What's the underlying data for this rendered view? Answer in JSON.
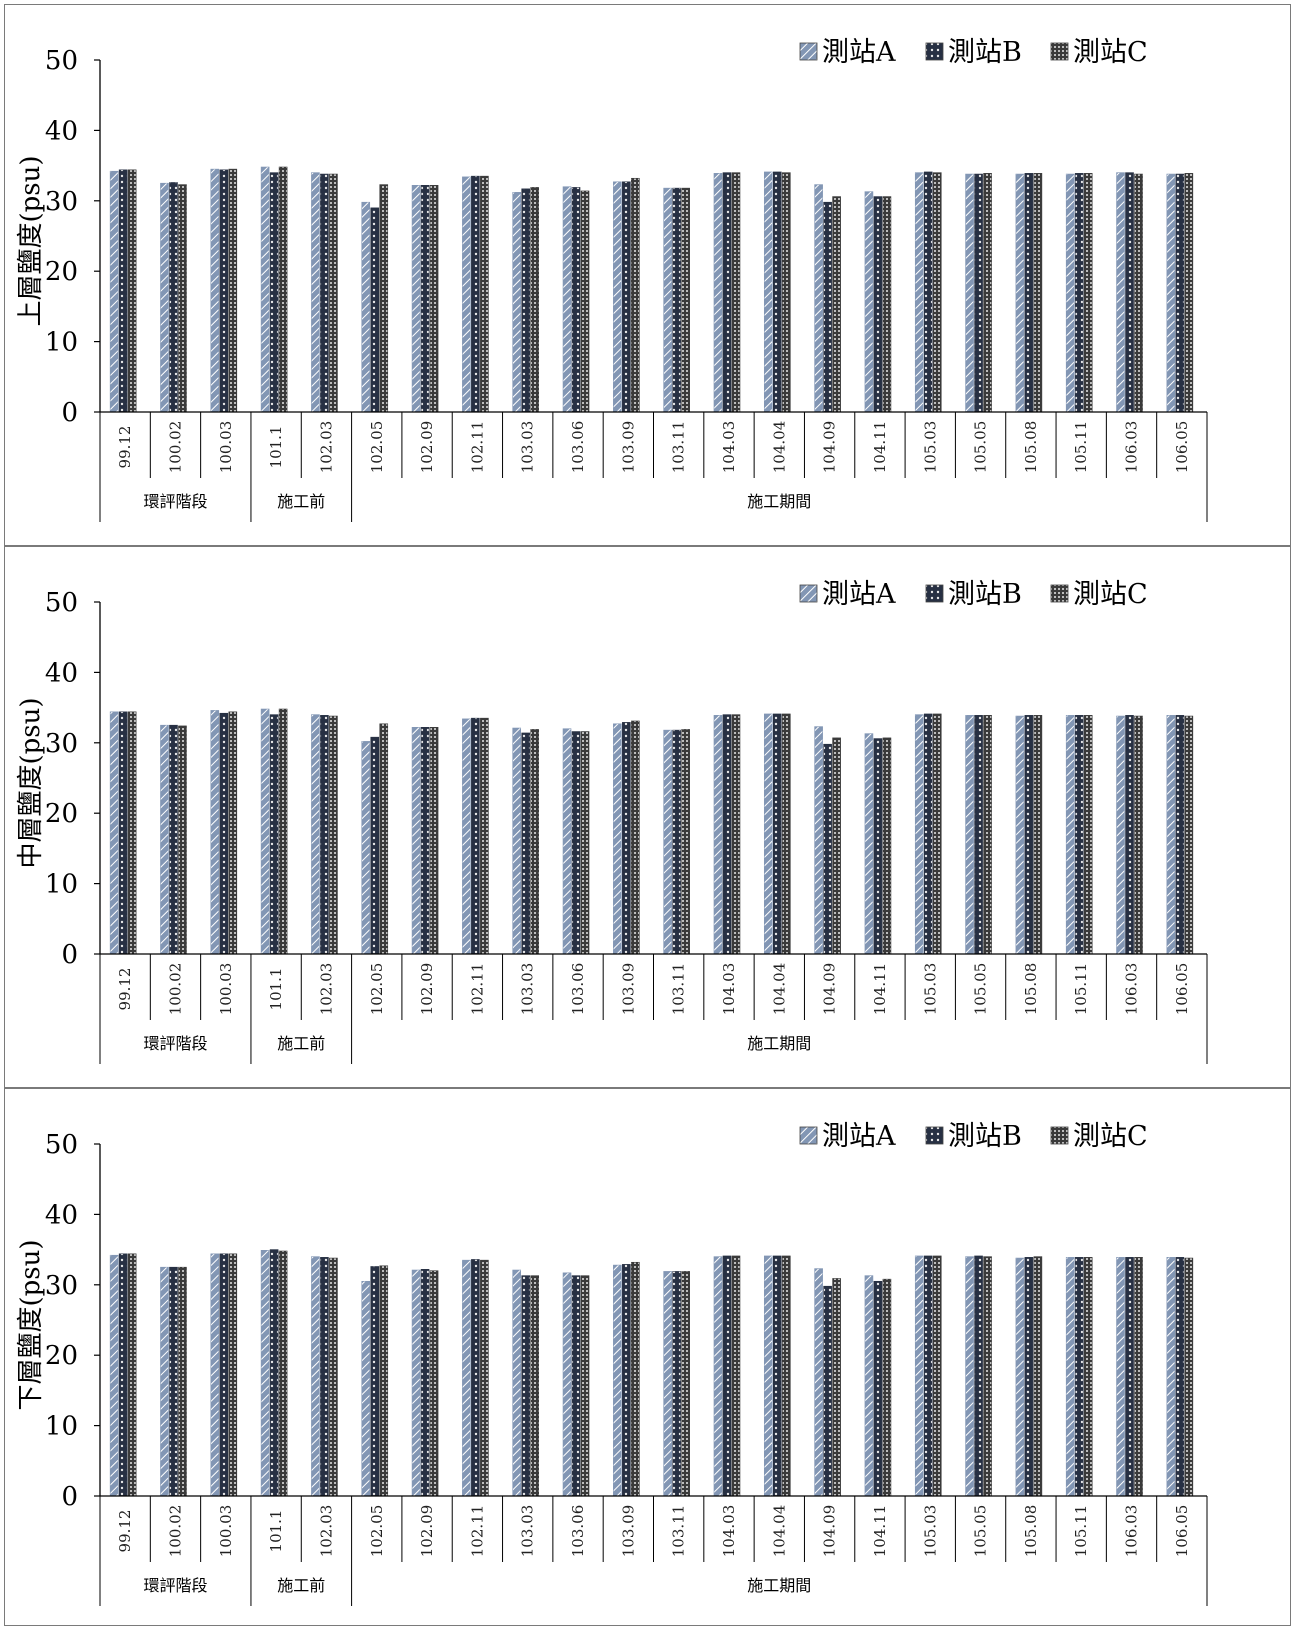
{
  "charts": [
    {
      "chart_data": {
        "type": "bar",
        "ylabel": "上層鹽度(psu)",
        "ylim": [
          0,
          50
        ],
        "yticks": [
          "0",
          "10",
          "20",
          "30",
          "40",
          "50"
        ],
        "categories": [
          "99.12",
          "100.02",
          "100.03",
          "101.1",
          "102.03",
          "102.05",
          "102.09",
          "102.11",
          "103.03",
          "103.06",
          "103.09",
          "103.11",
          "104.03",
          "104.04",
          "104.09",
          "104.11",
          "105.03",
          "105.05",
          "105.08",
          "105.11",
          "106.03",
          "106.05"
        ],
        "groups": [
          {
            "label": "環評階段",
            "count": 3
          },
          {
            "label": "施工前",
            "count": 2
          },
          {
            "label": "施工期間",
            "count": 17
          }
        ],
        "series": [
          {
            "name": "測站A",
            "values": [
              34.2,
              32.5,
              34.5,
              34.8,
              34.0,
              29.8,
              32.2,
              33.4,
              31.2,
              32.0,
              32.7,
              31.8,
              33.9,
              34.1,
              32.3,
              31.3,
              34.0,
              33.8,
              33.8,
              33.8,
              34.0,
              33.8
            ]
          },
          {
            "name": "測站B",
            "values": [
              34.4,
              32.6,
              34.4,
              34.0,
              33.8,
              29.0,
              32.2,
              33.5,
              31.7,
              31.9,
              32.7,
              31.8,
              34.0,
              34.1,
              29.8,
              30.6,
              34.1,
              33.8,
              33.9,
              33.9,
              34.0,
              33.8
            ]
          },
          {
            "name": "測站C",
            "values": [
              34.4,
              32.3,
              34.5,
              34.8,
              33.8,
              32.3,
              32.2,
              33.5,
              31.9,
              31.4,
              33.2,
              31.8,
              34.0,
              34.0,
              30.6,
              30.6,
              34.0,
              33.9,
              33.9,
              33.9,
              33.8,
              33.9
            ]
          }
        ],
        "legend_position": "top-right"
      }
    },
    {
      "chart_data": {
        "type": "bar",
        "ylabel": "中層鹽度(psu)",
        "ylim": [
          0,
          50
        ],
        "yticks": [
          "0",
          "10",
          "20",
          "30",
          "40",
          "50"
        ],
        "categories": [
          "99.12",
          "100.02",
          "100.03",
          "101.1",
          "102.03",
          "102.05",
          "102.09",
          "102.11",
          "103.03",
          "103.06",
          "103.09",
          "103.11",
          "104.03",
          "104.04",
          "104.09",
          "104.11",
          "105.03",
          "105.05",
          "105.08",
          "105.11",
          "106.03",
          "106.05"
        ],
        "groups": [
          {
            "label": "環評階段",
            "count": 3
          },
          {
            "label": "施工前",
            "count": 2
          },
          {
            "label": "施工期間",
            "count": 17
          }
        ],
        "series": [
          {
            "name": "測站A",
            "values": [
              34.4,
              32.5,
              34.6,
              34.8,
              34.0,
              30.2,
              32.2,
              33.4,
              32.1,
              32.0,
              32.7,
              31.8,
              33.9,
              34.1,
              32.3,
              31.3,
              34.0,
              33.9,
              33.8,
              33.9,
              33.8,
              33.9
            ]
          },
          {
            "name": "測站B",
            "values": [
              34.4,
              32.5,
              34.2,
              34.0,
              33.9,
              30.8,
              32.2,
              33.5,
              31.4,
              31.6,
              32.9,
              31.8,
              34.0,
              34.1,
              29.8,
              30.6,
              34.1,
              33.9,
              33.9,
              33.9,
              33.9,
              33.9
            ]
          },
          {
            "name": "測站C",
            "values": [
              34.4,
              32.4,
              34.4,
              34.8,
              33.8,
              32.7,
              32.2,
              33.5,
              31.9,
              31.6,
              33.1,
              31.9,
              34.0,
              34.1,
              30.7,
              30.7,
              34.1,
              33.9,
              33.9,
              33.9,
              33.8,
              33.8
            ]
          }
        ],
        "legend_position": "top-right"
      }
    },
    {
      "chart_data": {
        "type": "bar",
        "ylabel": "下層鹽度(psu)",
        "ylim": [
          0,
          50
        ],
        "yticks": [
          "0",
          "10",
          "20",
          "30",
          "40",
          "50"
        ],
        "categories": [
          "99.12",
          "100.02",
          "100.03",
          "101.1",
          "102.03",
          "102.05",
          "102.09",
          "102.11",
          "103.03",
          "103.06",
          "103.09",
          "103.11",
          "104.03",
          "104.04",
          "104.09",
          "104.11",
          "105.03",
          "105.05",
          "105.08",
          "105.11",
          "106.03",
          "106.05"
        ],
        "groups": [
          {
            "label": "環評階段",
            "count": 3
          },
          {
            "label": "施工前",
            "count": 2
          },
          {
            "label": "施工期間",
            "count": 17
          }
        ],
        "series": [
          {
            "name": "測站A",
            "values": [
              34.2,
              32.5,
              34.4,
              34.9,
              34.0,
              30.5,
              32.1,
              33.5,
              32.1,
              31.7,
              32.8,
              31.9,
              34.0,
              34.1,
              32.3,
              31.3,
              34.1,
              34.0,
              33.8,
              33.9,
              33.9,
              33.9
            ]
          },
          {
            "name": "測站B",
            "values": [
              34.4,
              32.5,
              34.4,
              35.0,
              33.9,
              32.6,
              32.2,
              33.6,
              31.3,
              31.3,
              32.9,
              31.9,
              34.1,
              34.1,
              29.8,
              30.5,
              34.1,
              34.1,
              33.9,
              33.9,
              33.9,
              33.9
            ]
          },
          {
            "name": "測站C",
            "values": [
              34.4,
              32.5,
              34.4,
              34.8,
              33.8,
              32.7,
              32.0,
              33.5,
              31.3,
              31.3,
              33.2,
              31.9,
              34.1,
              34.1,
              30.9,
              30.8,
              34.1,
              34.0,
              34.0,
              33.9,
              33.9,
              33.8
            ]
          }
        ],
        "legend_position": "top-right"
      }
    }
  ],
  "colors": {
    "stationA": "#8296b4",
    "stationB": "#273043",
    "stationC": "#3a3a3a",
    "axis": "#000000"
  }
}
